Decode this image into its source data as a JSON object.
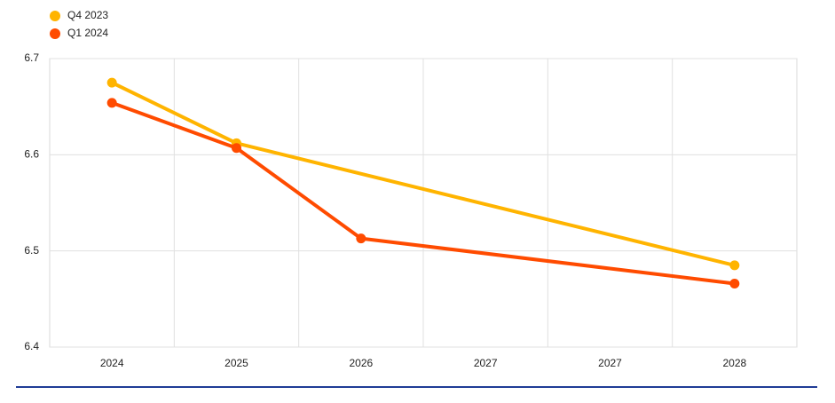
{
  "chart_data": {
    "type": "line",
    "categories": [
      "2024",
      "2025",
      "2026",
      "2027",
      "2027",
      "2028"
    ],
    "series": [
      {
        "name": "Q4 2023",
        "color": "#ffb400",
        "values": [
          6.675,
          6.612,
          null,
          null,
          null,
          6.485
        ]
      },
      {
        "name": "Q1 2024",
        "color": "#ff4b00",
        "values": [
          6.654,
          6.607,
          6.513,
          null,
          null,
          6.466
        ]
      }
    ],
    "ylim": [
      6.4,
      6.7
    ],
    "yticks": [
      6.4,
      6.5,
      6.6,
      6.7
    ],
    "grid": true,
    "interpolate_nulls": true,
    "legend": "top-left"
  }
}
